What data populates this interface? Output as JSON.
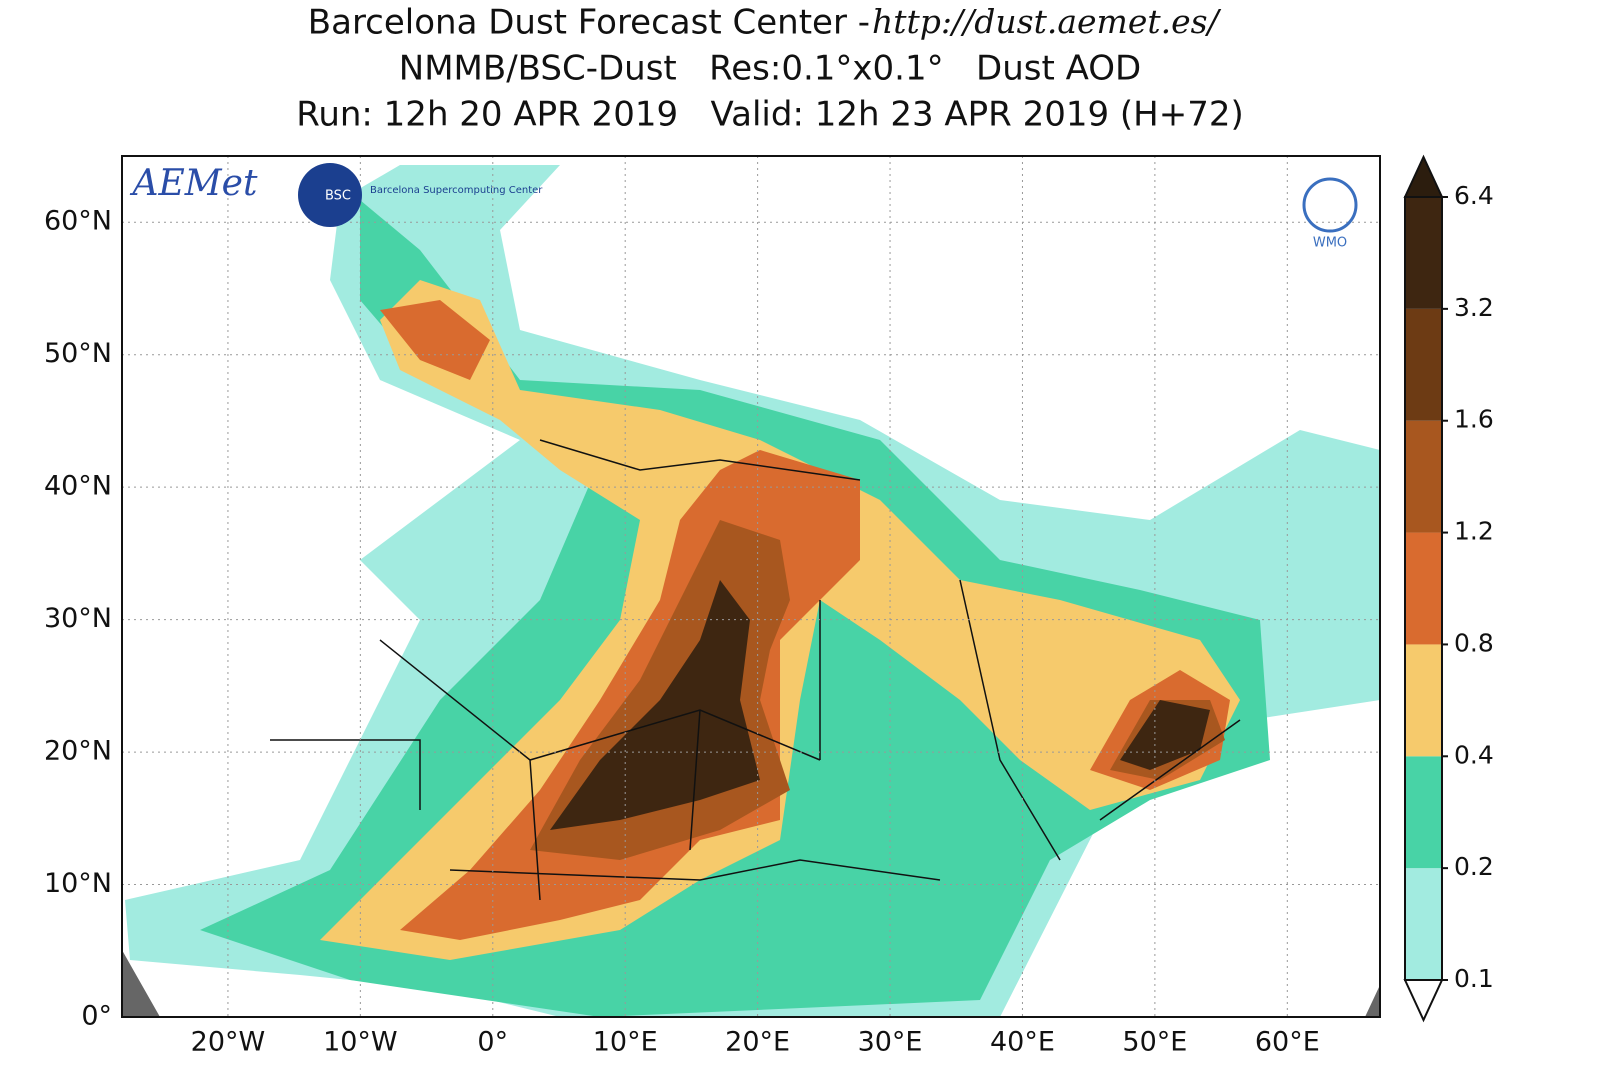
{
  "header": {
    "title": "Barcelona Dust Forecast Center - ",
    "url": "http://dust.aemet.es/",
    "subtitle": "NMMB/BSC-Dust   Res:0.1°x0.1°   Dust AOD",
    "run": "Run: 12h 20 APR 2019   Valid: 12h 23 APR 2019 (H+72)"
  },
  "logos": {
    "aemet": "AEMet",
    "bsc": "BSC",
    "bsc_name": "Barcelona Supercomputing Center",
    "wmo": "WMO"
  },
  "map": {
    "xlim": [
      -28,
      67
    ],
    "ylim": [
      0,
      65
    ],
    "grid": true,
    "xticks": [
      {
        "value": -20,
        "label": "20°W"
      },
      {
        "value": -10,
        "label": "10°W"
      },
      {
        "value": 0,
        "label": "0°"
      },
      {
        "value": 10,
        "label": "10°E"
      },
      {
        "value": 20,
        "label": "20°E"
      },
      {
        "value": 30,
        "label": "30°E"
      },
      {
        "value": 40,
        "label": "40°E"
      },
      {
        "value": 50,
        "label": "50°E"
      },
      {
        "value": 60,
        "label": "60°E"
      }
    ],
    "yticks": [
      {
        "value": 0,
        "label": "0°"
      },
      {
        "value": 10,
        "label": "10°N"
      },
      {
        "value": 20,
        "label": "20°N"
      },
      {
        "value": 30,
        "label": "30°N"
      },
      {
        "value": 40,
        "label": "40°N"
      },
      {
        "value": 50,
        "label": "50°N"
      },
      {
        "value": 60,
        "label": "60°N"
      }
    ]
  },
  "colorbar": {
    "levels": [
      0.1,
      0.2,
      0.4,
      0.8,
      1.2,
      1.6,
      3.2,
      6.4
    ],
    "colors": [
      "#a2ebe0",
      "#48d3a6",
      "#f6ca6c",
      "#d96b2f",
      "#a8571f",
      "#6d3b14",
      "#3e2611"
    ],
    "under": "#ffffff",
    "over": "#2c1d0e"
  }
}
